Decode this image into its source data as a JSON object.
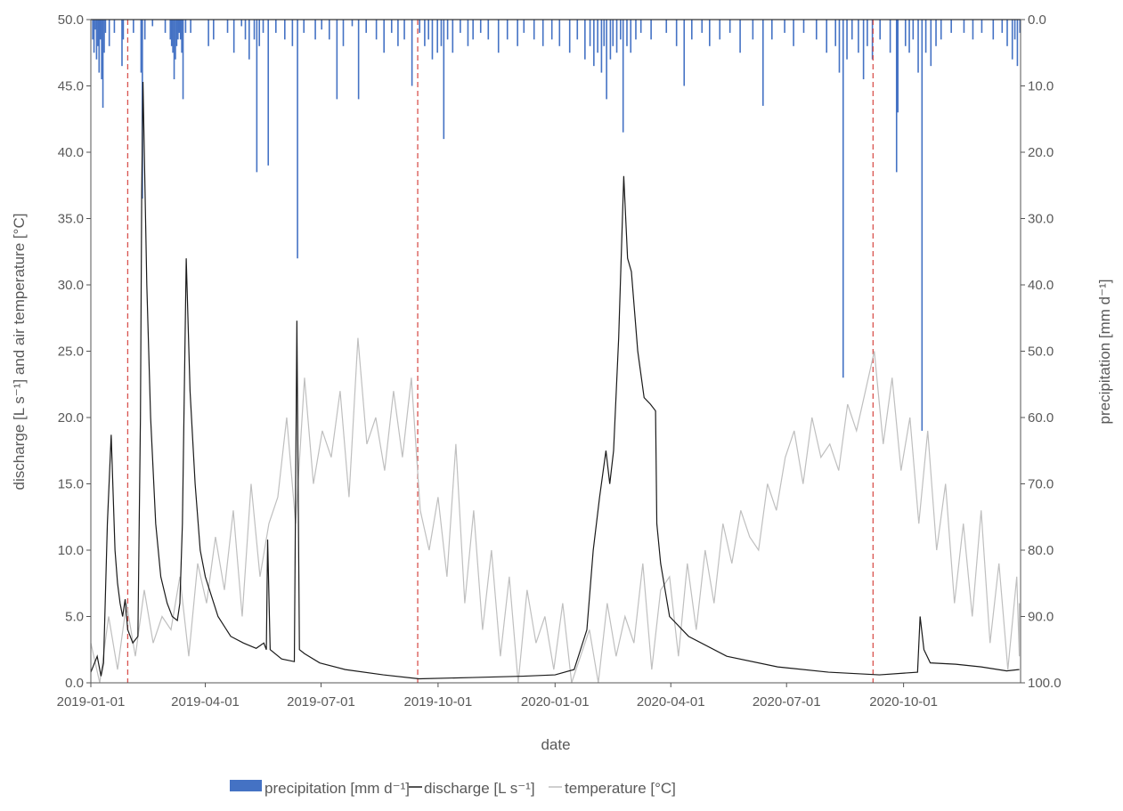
{
  "chart_data": {
    "type": "line",
    "title": "",
    "xlabel": "date",
    "ylabel_left": "discharge [L s⁻¹] and air temperature [°C]",
    "ylabel_right": "precipitation [mm d⁻¹]",
    "x_start": "2019-01-01",
    "x_end": "2020-12-31",
    "x_ticks": [
      "2019-01-01",
      "2019-04-01",
      "2019-07-01",
      "2019-10-01",
      "2020-01-01",
      "2020-04-01",
      "2020-07-01",
      "2020-10-01"
    ],
    "ylim_left": [
      0,
      50
    ],
    "y_ticks_left": [
      "0.0",
      "5.0",
      "10.0",
      "15.0",
      "20.0",
      "25.0",
      "30.0",
      "35.0",
      "40.0",
      "45.0",
      "50.0"
    ],
    "ylim_right_inverted": [
      0,
      100
    ],
    "y_ticks_right": [
      "0.0",
      "10.0",
      "20.0",
      "30.0",
      "40.0",
      "50.0",
      "60.0",
      "70.0",
      "80.0",
      "90.0",
      "100.0"
    ],
    "grid": false,
    "legend_position": "bottom",
    "legend": [
      "precipitation [mm d⁻¹]",
      "discharge [L s⁻¹]",
      "temperature [°C]"
    ],
    "colors": {
      "precipitation": "#4472C4",
      "discharge": "#1a1a1a",
      "temperature": "#bfbfbf",
      "marker_lines": "#d9534f"
    },
    "marker_lines_dates": [
      "2019-01-30",
      "2019-09-15",
      "2020-09-07"
    ],
    "series": [
      {
        "name": "discharge [L s⁻¹]",
        "axis": "left",
        "points_day_value": [
          [
            0,
            0.8
          ],
          [
            5,
            2
          ],
          [
            8,
            0.5
          ],
          [
            10,
            1.5
          ],
          [
            13,
            12
          ],
          [
            16,
            18.7
          ],
          [
            19,
            10
          ],
          [
            21,
            7.5
          ],
          [
            23,
            6
          ],
          [
            25,
            5
          ],
          [
            27,
            6.3
          ],
          [
            29,
            4
          ],
          [
            33,
            3
          ],
          [
            37,
            3.5
          ],
          [
            39,
            20
          ],
          [
            40,
            37
          ],
          [
            41,
            45.3
          ],
          [
            44,
            30
          ],
          [
            47,
            20
          ],
          [
            51,
            12
          ],
          [
            55,
            8
          ],
          [
            60,
            6
          ],
          [
            64,
            5
          ],
          [
            68,
            4.7
          ],
          [
            70,
            6
          ],
          [
            72,
            12
          ],
          [
            75,
            32
          ],
          [
            78,
            22
          ],
          [
            82,
            15
          ],
          [
            86,
            10
          ],
          [
            90,
            8
          ],
          [
            100,
            5
          ],
          [
            110,
            3.5
          ],
          [
            120,
            3
          ],
          [
            130,
            2.6
          ],
          [
            136,
            3.0
          ],
          [
            138,
            2.5
          ],
          [
            139,
            10.8
          ],
          [
            141,
            2.5
          ],
          [
            150,
            1.8
          ],
          [
            160,
            1.6
          ],
          [
            162,
            27.3
          ],
          [
            164,
            2.5
          ],
          [
            168,
            2.2
          ],
          [
            180,
            1.5
          ],
          [
            200,
            1.0
          ],
          [
            230,
            0.6
          ],
          [
            258,
            0.3
          ],
          [
            300,
            0.4
          ],
          [
            340,
            0.5
          ],
          [
            365,
            0.6
          ],
          [
            380,
            1.0
          ],
          [
            385,
            2.5
          ],
          [
            390,
            4
          ],
          [
            395,
            10
          ],
          [
            400,
            14
          ],
          [
            405,
            17.5
          ],
          [
            408,
            15
          ],
          [
            411,
            17.5
          ],
          [
            415,
            26
          ],
          [
            419,
            38.2
          ],
          [
            422,
            32
          ],
          [
            425,
            31
          ],
          [
            430,
            25
          ],
          [
            435,
            21.5
          ],
          [
            440,
            21
          ],
          [
            444,
            20.5
          ],
          [
            445,
            12
          ],
          [
            448,
            9
          ],
          [
            455,
            5
          ],
          [
            470,
            3.5
          ],
          [
            500,
            2
          ],
          [
            540,
            1.2
          ],
          [
            580,
            0.8
          ],
          [
            620,
            0.6
          ],
          [
            650,
            0.8
          ],
          [
            652,
            5
          ],
          [
            655,
            2.5
          ],
          [
            660,
            1.5
          ],
          [
            680,
            1.4
          ],
          [
            700,
            1.2
          ],
          [
            720,
            0.9
          ],
          [
            730,
            1.0
          ]
        ]
      },
      {
        "name": "temperature [°C]",
        "axis": "left",
        "weekly_values": [
          3,
          0,
          5,
          1,
          6,
          2,
          7,
          3,
          5,
          4,
          8,
          2,
          9,
          6,
          11,
          7,
          13,
          5,
          15,
          8,
          12,
          14,
          20,
          12,
          23,
          15,
          19,
          17,
          22,
          14,
          26,
          18,
          20,
          16,
          22,
          17,
          23,
          13,
          10,
          14,
          8,
          18,
          6,
          13,
          4,
          10,
          2,
          8,
          0,
          7,
          3,
          5,
          1,
          6,
          0,
          2,
          4,
          0,
          6,
          2,
          5,
          3,
          9,
          1,
          7,
          8,
          2,
          9,
          4,
          10,
          6,
          12,
          9,
          13,
          11,
          10,
          15,
          13,
          17,
          19,
          15,
          20,
          17,
          18,
          16,
          21,
          19,
          22,
          25,
          18,
          23,
          16,
          20,
          12,
          19,
          10,
          15,
          6,
          12,
          5,
          13,
          3,
          9,
          1,
          8,
          2,
          6
        ]
      },
      {
        "name": "precipitation [mm d⁻¹]",
        "axis": "right_inverted",
        "events_day_mm": [
          [
            1,
            3
          ],
          [
            2,
            5
          ],
          [
            3,
            1.5
          ],
          [
            4,
            6
          ],
          [
            5,
            4
          ],
          [
            6,
            8
          ],
          [
            7,
            3
          ],
          [
            8,
            9
          ],
          [
            9,
            13.3
          ],
          [
            10,
            5
          ],
          [
            11,
            2
          ],
          [
            14,
            4
          ],
          [
            18,
            2
          ],
          [
            24,
            7
          ],
          [
            25,
            3
          ],
          [
            33,
            2
          ],
          [
            39,
            8
          ],
          [
            40,
            27
          ],
          [
            42,
            3
          ],
          [
            48,
            1
          ],
          [
            58,
            2
          ],
          [
            62,
            3
          ],
          [
            63,
            4
          ],
          [
            64,
            5
          ],
          [
            65,
            9
          ],
          [
            66,
            6
          ],
          [
            67,
            4
          ],
          [
            68,
            3
          ],
          [
            69,
            2
          ],
          [
            70,
            3
          ],
          [
            71,
            5
          ],
          [
            72,
            12
          ],
          [
            74,
            2
          ],
          [
            78,
            2
          ],
          [
            92,
            4
          ],
          [
            96,
            3
          ],
          [
            107,
            2
          ],
          [
            112,
            5
          ],
          [
            118,
            1
          ],
          [
            121,
            3
          ],
          [
            124,
            6
          ],
          [
            128,
            3
          ],
          [
            130,
            23
          ],
          [
            132,
            4
          ],
          [
            135,
            2
          ],
          [
            139,
            22
          ],
          [
            145,
            2
          ],
          [
            152,
            3
          ],
          [
            158,
            4
          ],
          [
            162,
            36
          ],
          [
            167,
            2
          ],
          [
            176,
            3
          ],
          [
            181,
            1.5
          ],
          [
            187,
            3
          ],
          [
            193,
            12
          ],
          [
            198,
            4
          ],
          [
            205,
            1
          ],
          [
            210,
            12
          ],
          [
            216,
            2
          ],
          [
            224,
            3
          ],
          [
            230,
            5
          ],
          [
            236,
            2
          ],
          [
            241,
            4
          ],
          [
            246,
            3
          ],
          [
            252,
            10
          ],
          [
            258,
            2
          ],
          [
            262,
            4
          ],
          [
            265,
            3
          ],
          [
            268,
            6
          ],
          [
            272,
            5
          ],
          [
            275,
            4
          ],
          [
            277,
            18
          ],
          [
            280,
            3
          ],
          [
            284,
            5
          ],
          [
            290,
            2
          ],
          [
            296,
            4
          ],
          [
            300,
            3
          ],
          [
            306,
            2
          ],
          [
            312,
            3
          ],
          [
            320,
            5
          ],
          [
            327,
            3
          ],
          [
            335,
            4
          ],
          [
            340,
            2
          ],
          [
            348,
            3
          ],
          [
            355,
            4
          ],
          [
            362,
            3
          ],
          [
            368,
            4
          ],
          [
            376,
            5
          ],
          [
            382,
            3
          ],
          [
            388,
            6
          ],
          [
            392,
            4
          ],
          [
            395,
            7
          ],
          [
            398,
            5
          ],
          [
            401,
            8
          ],
          [
            403,
            4
          ],
          [
            405,
            12
          ],
          [
            408,
            6
          ],
          [
            410,
            4
          ],
          [
            413,
            5
          ],
          [
            416,
            3
          ],
          [
            418,
            17
          ],
          [
            421,
            4
          ],
          [
            424,
            5
          ],
          [
            428,
            3
          ],
          [
            432,
            2
          ],
          [
            440,
            3
          ],
          [
            452,
            2
          ],
          [
            460,
            4
          ],
          [
            466,
            10
          ],
          [
            472,
            3
          ],
          [
            480,
            2
          ],
          [
            486,
            4
          ],
          [
            494,
            3
          ],
          [
            502,
            2
          ],
          [
            510,
            5
          ],
          [
            520,
            3
          ],
          [
            528,
            13
          ],
          [
            535,
            3
          ],
          [
            545,
            2
          ],
          [
            552,
            4
          ],
          [
            560,
            2
          ],
          [
            570,
            3
          ],
          [
            578,
            5
          ],
          [
            585,
            4
          ],
          [
            588,
            8
          ],
          [
            591,
            54
          ],
          [
            594,
            6
          ],
          [
            598,
            3
          ],
          [
            603,
            5
          ],
          [
            607,
            9
          ],
          [
            610,
            4
          ],
          [
            614,
            6
          ],
          [
            620,
            3
          ],
          [
            628,
            5
          ],
          [
            633,
            23
          ],
          [
            634,
            14
          ],
          [
            640,
            4
          ],
          [
            643,
            5
          ],
          [
            646,
            3
          ],
          [
            650,
            8
          ],
          [
            653,
            62
          ],
          [
            656,
            5
          ],
          [
            660,
            7
          ],
          [
            664,
            4
          ],
          [
            668,
            3
          ],
          [
            676,
            2
          ],
          [
            686,
            2
          ],
          [
            693,
            3
          ],
          [
            700,
            2
          ],
          [
            709,
            3
          ],
          [
            716,
            2
          ],
          [
            720,
            4
          ],
          [
            724,
            6
          ],
          [
            726,
            3
          ],
          [
            728,
            7
          ],
          [
            730,
            2
          ]
        ]
      }
    ]
  }
}
